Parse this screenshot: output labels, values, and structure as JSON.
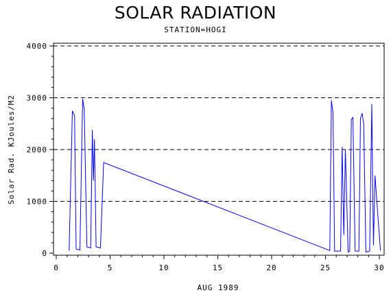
{
  "chart_data": {
    "type": "line",
    "title": "SOLAR RADIATION",
    "subtitle": "STATION=HOGI",
    "xlabel": "AUG 1989",
    "ylabel": "Solar Rad. KJoules/M2",
    "xlim": [
      0,
      30
    ],
    "ylim": [
      0,
      4000
    ],
    "x_ticks": [
      0,
      5,
      10,
      15,
      20,
      25,
      30
    ],
    "y_ticks": [
      0,
      1000,
      2000,
      3000,
      4000
    ],
    "x_tick_labels": [
      "0",
      "5",
      "10",
      "15",
      "20",
      "25",
      "30"
    ],
    "y_tick_labels": [
      "0",
      "1000",
      "2000",
      "3000",
      "4000"
    ],
    "grid": "horizontal dashed",
    "line_color": "#0000ff",
    "series": [
      {
        "x": [
          1.2,
          1.5,
          1.7,
          1.85,
          2.2,
          2.45,
          2.6,
          2.85,
          3.2,
          3.35,
          3.45,
          3.55,
          3.7,
          4.1,
          4.4,
          25.4,
          25.55,
          25.7,
          25.85,
          26.4,
          26.55,
          26.7,
          26.85,
          27.1,
          27.25,
          27.4,
          27.55,
          27.75,
          28.1,
          28.25,
          28.4,
          28.55,
          28.75,
          29.1,
          29.3,
          29.45,
          29.6,
          29.75,
          30.1
        ],
        "y": [
          50,
          2750,
          2650,
          80,
          60,
          2980,
          2780,
          120,
          100,
          2380,
          1400,
          2200,
          120,
          100,
          1750,
          50,
          2950,
          2700,
          40,
          40,
          2050,
          350,
          2000,
          20,
          40,
          2580,
          2620,
          40,
          40,
          2600,
          2700,
          2500,
          20,
          40,
          2880,
          150,
          1500,
          1050,
          50
        ]
      }
    ]
  }
}
